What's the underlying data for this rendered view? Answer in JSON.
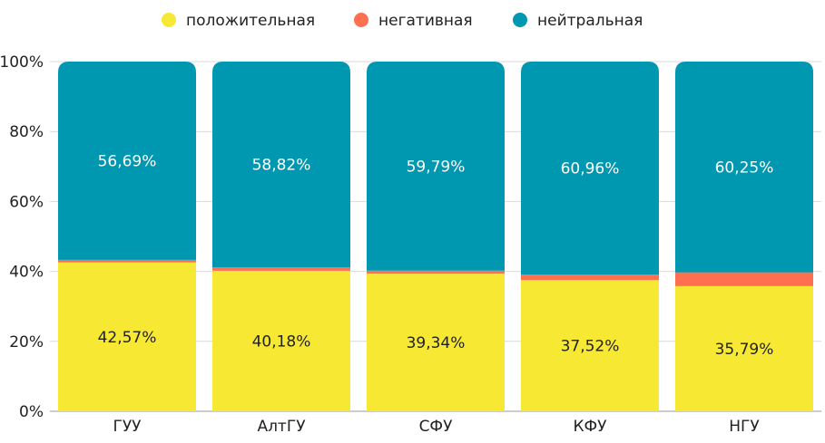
{
  "chart_data": {
    "type": "bar",
    "stacked": true,
    "normalized_percent": true,
    "categories": [
      "ГУУ",
      "АлтГУ",
      "СФУ",
      "КФУ",
      "НГУ"
    ],
    "series": [
      {
        "name": "положительная",
        "color": "#f7e933",
        "values": [
          42.57,
          40.18,
          39.34,
          37.52,
          35.79
        ],
        "labels": [
          "42,57%",
          "40,18%",
          "39,34%",
          "37,52%",
          "35,79%"
        ],
        "label_color": "#222222"
      },
      {
        "name": "негативная",
        "color": "#ff7050",
        "values": [
          0.74,
          1.0,
          0.87,
          1.52,
          3.96
        ],
        "labels": [],
        "label_color": "#222222"
      },
      {
        "name": "нейтральная",
        "color": "#0097b0",
        "values": [
          56.69,
          58.82,
          59.79,
          60.96,
          60.25
        ],
        "labels": [
          "56,69%",
          "58,82%",
          "59,79%",
          "60,96%",
          "60,25%"
        ],
        "label_color": "#ffffff"
      }
    ],
    "y_ticks": [
      0,
      20,
      40,
      60,
      80,
      100
    ],
    "y_tick_labels": [
      "0%",
      "20%",
      "40%",
      "60%",
      "80%",
      "100%"
    ],
    "ylim": [
      0,
      100
    ],
    "grid": true,
    "legend_position": "top-center"
  }
}
